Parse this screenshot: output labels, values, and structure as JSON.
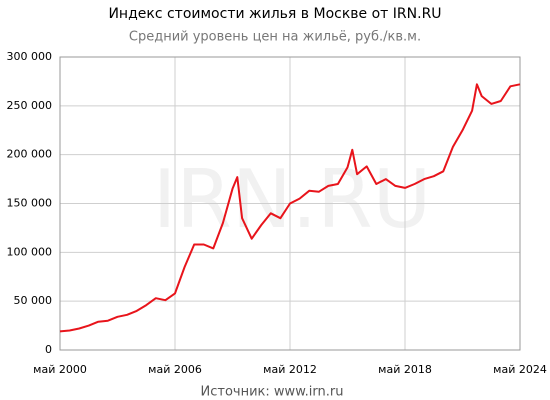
{
  "chart_data": {
    "type": "line",
    "title": "Индекс стоимости жилья в Москве от IRN.RU",
    "subtitle": "Средний уровень цен на жильё, руб./кв.м.",
    "watermark": "IRN.RU",
    "source": "Источник: www.irn.ru",
    "color": "#e8141b",
    "grid": true,
    "x": [
      "2000-05",
      "2000-11",
      "2001-05",
      "2001-11",
      "2002-05",
      "2002-11",
      "2003-05",
      "2003-11",
      "2004-05",
      "2004-11",
      "2005-05",
      "2005-11",
      "2006-05",
      "2006-11",
      "2007-05",
      "2007-11",
      "2008-05",
      "2008-11",
      "2009-05",
      "2009-08",
      "2009-11",
      "2010-05",
      "2010-11",
      "2011-05",
      "2011-11",
      "2012-05",
      "2012-11",
      "2013-05",
      "2013-11",
      "2014-05",
      "2014-11",
      "2015-05",
      "2015-08",
      "2015-11",
      "2016-05",
      "2016-11",
      "2017-05",
      "2017-11",
      "2018-05",
      "2018-11",
      "2019-05",
      "2019-11",
      "2020-05",
      "2020-11",
      "2021-05",
      "2021-11",
      "2022-02",
      "2022-05",
      "2022-11",
      "2023-05",
      "2023-11",
      "2024-05"
    ],
    "values": [
      19000,
      20000,
      22000,
      25000,
      29000,
      30000,
      34000,
      36000,
      40000,
      46000,
      53000,
      51000,
      58000,
      85000,
      108000,
      108000,
      104000,
      130000,
      165000,
      177000,
      135000,
      114000,
      128000,
      140000,
      135000,
      150000,
      155000,
      163000,
      162000,
      168000,
      170000,
      187000,
      205000,
      180000,
      188000,
      170000,
      175000,
      168000,
      166000,
      170000,
      175000,
      178000,
      183000,
      208000,
      225000,
      245000,
      272000,
      260000,
      252000,
      255000,
      270000,
      272000
    ],
    "xlim": [
      "2000-05",
      "2024-05"
    ],
    "xticks": [
      {
        "value": "2000-05",
        "label": "май 2000"
      },
      {
        "value": "2006-05",
        "label": "май 2006"
      },
      {
        "value": "2012-05",
        "label": "май 2012"
      },
      {
        "value": "2018-05",
        "label": "май 2018"
      },
      {
        "value": "2024-05",
        "label": "май 2024"
      }
    ],
    "ylim": [
      0,
      300000
    ],
    "yticks": [
      0,
      {
        "value": 50000,
        "label": "50 000"
      },
      {
        "value": 100000,
        "label": "100 000"
      },
      {
        "value": 150000,
        "label": "150 000"
      },
      {
        "value": 200000,
        "label": "200 000"
      },
      {
        "value": 250000,
        "label": "250 000"
      },
      {
        "value": 300000,
        "label": "300 000"
      }
    ]
  }
}
